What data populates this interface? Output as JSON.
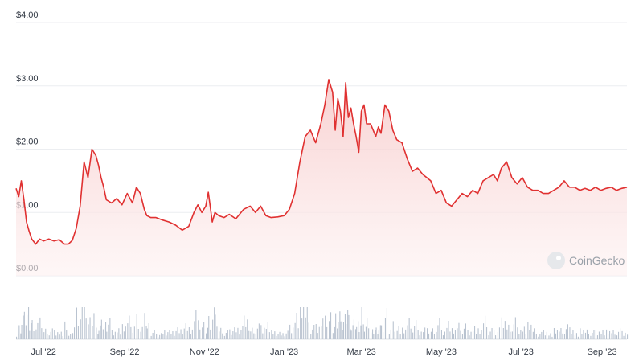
{
  "chart_data": {
    "type": "area",
    "title": "",
    "xlabel": "",
    "ylabel": "",
    "y_unit": "USD",
    "ylim": [
      0,
      4
    ],
    "y_ticks": [
      "$0.00",
      "$1.00",
      "$2.00",
      "$3.00",
      "$4.00"
    ],
    "y_tick_values": [
      0,
      1,
      2,
      3,
      4
    ],
    "xlim": [
      "2022-06-10",
      "2023-09-20"
    ],
    "x_ticks": [
      "Jul '22",
      "Sep '22",
      "Nov '22",
      "Jan '23",
      "Mar '23",
      "May '23",
      "Jul '23",
      "Sep '23"
    ],
    "x_tick_dates": [
      "2022-07-01",
      "2022-09-01",
      "2022-11-01",
      "2023-01-01",
      "2023-03-01",
      "2023-05-01",
      "2023-07-01",
      "2023-09-01"
    ],
    "grid": true,
    "line_color": "#e03131",
    "fill_color": "#fbe3e3",
    "volume_color": "#b9c3d0",
    "watermark": "CoinGecko",
    "series": [
      {
        "x": [
          "2022-06-10",
          "2022-06-12",
          "2022-06-14",
          "2022-06-16",
          "2022-06-18",
          "2022-06-20",
          "2022-06-22",
          "2022-06-25",
          "2022-06-28",
          "2022-07-01",
          "2022-07-05",
          "2022-07-09",
          "2022-07-13",
          "2022-07-17",
          "2022-07-20",
          "2022-07-23",
          "2022-07-26",
          "2022-07-29",
          "2022-08-01",
          "2022-08-04",
          "2022-08-07",
          "2022-08-10",
          "2022-08-12",
          "2022-08-14",
          "2022-08-16",
          "2022-08-18",
          "2022-08-22",
          "2022-08-26",
          "2022-08-30",
          "2022-09-03",
          "2022-09-07",
          "2022-09-10",
          "2022-09-13",
          "2022-09-16",
          "2022-09-18",
          "2022-09-21",
          "2022-09-25",
          "2022-09-30",
          "2022-10-05",
          "2022-10-10",
          "2022-10-15",
          "2022-10-20",
          "2022-10-24",
          "2022-10-27",
          "2022-10-30",
          "2022-11-02",
          "2022-11-04",
          "2022-11-07",
          "2022-11-09",
          "2022-11-12",
          "2022-11-16",
          "2022-11-20",
          "2022-11-25",
          "2022-12-01",
          "2022-12-06",
          "2022-12-10",
          "2022-12-14",
          "2022-12-18",
          "2022-12-22",
          "2022-12-27",
          "2023-01-01",
          "2023-01-05",
          "2023-01-09",
          "2023-01-13",
          "2023-01-17",
          "2023-01-21",
          "2023-01-25",
          "2023-01-29",
          "2023-02-01",
          "2023-02-04",
          "2023-02-07",
          "2023-02-09",
          "2023-02-11",
          "2023-02-13",
          "2023-02-15",
          "2023-02-17",
          "2023-02-19",
          "2023-02-21",
          "2023-02-23",
          "2023-02-25",
          "2023-02-27",
          "2023-03-01",
          "2023-03-03",
          "2023-03-05",
          "2023-03-08",
          "2023-03-10",
          "2023-03-12",
          "2023-03-14",
          "2023-03-16",
          "2023-03-19",
          "2023-03-22",
          "2023-03-25",
          "2023-03-28",
          "2023-04-01",
          "2023-04-05",
          "2023-04-09",
          "2023-04-13",
          "2023-04-17",
          "2023-04-20",
          "2023-04-23",
          "2023-04-27",
          "2023-05-01",
          "2023-05-05",
          "2023-05-09",
          "2023-05-13",
          "2023-05-17",
          "2023-05-21",
          "2023-05-25",
          "2023-05-29",
          "2023-06-02",
          "2023-06-06",
          "2023-06-10",
          "2023-06-13",
          "2023-06-16",
          "2023-06-20",
          "2023-06-24",
          "2023-06-28",
          "2023-07-02",
          "2023-07-06",
          "2023-07-10",
          "2023-07-14",
          "2023-07-18",
          "2023-07-22",
          "2023-07-26",
          "2023-07-30",
          "2023-08-03",
          "2023-08-07",
          "2023-08-11",
          "2023-08-15",
          "2023-08-19",
          "2023-08-23",
          "2023-08-27",
          "2023-08-31",
          "2023-09-04",
          "2023-09-08",
          "2023-09-12",
          "2023-09-16",
          "2023-09-20"
        ],
        "y": [
          1.38,
          1.25,
          1.5,
          1.2,
          0.85,
          0.7,
          0.58,
          0.5,
          0.58,
          0.55,
          0.58,
          0.55,
          0.57,
          0.5,
          0.5,
          0.56,
          0.75,
          1.1,
          1.8,
          1.55,
          2.0,
          1.9,
          1.75,
          1.55,
          1.4,
          1.2,
          1.15,
          1.22,
          1.12,
          1.3,
          1.15,
          1.4,
          1.3,
          1.05,
          0.95,
          0.92,
          0.92,
          0.88,
          0.85,
          0.8,
          0.72,
          0.78,
          1.0,
          1.12,
          1.0,
          1.1,
          1.32,
          0.85,
          1.0,
          0.95,
          0.92,
          0.97,
          0.9,
          1.05,
          1.1,
          1.0,
          1.1,
          0.95,
          0.92,
          0.93,
          0.95,
          1.05,
          1.3,
          1.8,
          2.2,
          2.3,
          2.1,
          2.4,
          2.7,
          3.1,
          2.9,
          2.3,
          2.8,
          2.6,
          2.2,
          3.05,
          2.5,
          2.65,
          2.4,
          2.2,
          1.95,
          2.6,
          2.7,
          2.4,
          2.4,
          2.3,
          2.2,
          2.35,
          2.25,
          2.7,
          2.6,
          2.3,
          2.15,
          2.1,
          1.85,
          1.65,
          1.7,
          1.6,
          1.55,
          1.5,
          1.3,
          1.35,
          1.15,
          1.1,
          1.2,
          1.3,
          1.25,
          1.35,
          1.3,
          1.5,
          1.55,
          1.6,
          1.5,
          1.7,
          1.8,
          1.55,
          1.45,
          1.55,
          1.4,
          1.35,
          1.35,
          1.3,
          1.3,
          1.35,
          1.4,
          1.5,
          1.4,
          1.4,
          1.35,
          1.38,
          1.35,
          1.4,
          1.35,
          1.38,
          1.4,
          1.35,
          1.38,
          1.4
        ]
      }
    ]
  }
}
